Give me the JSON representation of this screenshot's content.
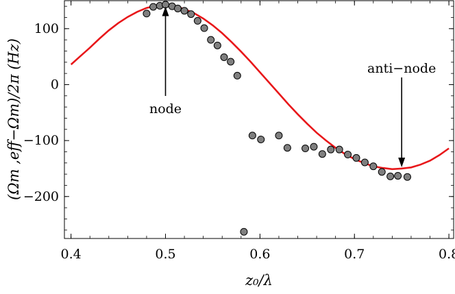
{
  "chart_data": {
    "type": "scatter",
    "xlabel": "z₀/λ",
    "ylabel": "(Ωm ,eff−Ωm)/2π (Hz)",
    "xlim": [
      0.393,
      0.805
    ],
    "ylim": [
      -275,
      150
    ],
    "x_ticks": [
      0.4,
      0.5,
      0.6,
      0.7,
      0.8
    ],
    "x_tick_labels": [
      "0.4",
      "0.5",
      "0.6",
      "0.7",
      "0.8"
    ],
    "y_ticks": [
      -200,
      -100,
      0,
      100
    ],
    "y_tick_labels": [
      "−200",
      "−100",
      "0",
      "100"
    ],
    "grid": false,
    "series": [
      {
        "kind": "points",
        "color": "#7f7f7f",
        "x": [
          0.48,
          0.487,
          0.494,
          0.5,
          0.507,
          0.513,
          0.52,
          0.527,
          0.534,
          0.541,
          0.548,
          0.555,
          0.562,
          0.569,
          0.576,
          0.583,
          0.592,
          0.601,
          0.62,
          0.629,
          0.648,
          0.657,
          0.666,
          0.675,
          0.684,
          0.693,
          0.702,
          0.711,
          0.72,
          0.729,
          0.738,
          0.746,
          0.756
        ],
        "y": [
          127,
          139,
          141,
          143,
          140,
          136,
          132,
          126,
          114,
          101,
          80,
          70,
          49,
          41,
          16,
          -263,
          -91,
          -98,
          -91,
          -113,
          -114,
          -111,
          -124,
          -116,
          -116,
          -125,
          -131,
          -139,
          -146,
          -156,
          -164,
          -163,
          -165
        ]
      },
      {
        "kind": "curve",
        "color": "#e8171a",
        "x": [
          0.4,
          0.41,
          0.42,
          0.43,
          0.44,
          0.45,
          0.46,
          0.47,
          0.48,
          0.49,
          0.5,
          0.51,
          0.52,
          0.53,
          0.54,
          0.55,
          0.56,
          0.57,
          0.58,
          0.59,
          0.6,
          0.61,
          0.62,
          0.63,
          0.64,
          0.65,
          0.66,
          0.67,
          0.68,
          0.69,
          0.7,
          0.71,
          0.72,
          0.73,
          0.74,
          0.75,
          0.76,
          0.77,
          0.78,
          0.79,
          0.8
        ],
        "y": [
          36,
          51,
          66,
          82,
          97,
          110,
          121,
          130,
          137,
          141,
          142,
          140,
          135,
          128,
          118,
          106,
          92,
          76,
          59,
          41,
          22,
          3,
          -16,
          -35,
          -53,
          -70,
          -86,
          -100,
          -113,
          -124,
          -133,
          -140,
          -146,
          -149,
          -151,
          -150,
          -148,
          -143,
          -136,
          -126,
          -114
        ]
      }
    ],
    "annotations": [
      {
        "text": "node",
        "x": 0.5,
        "y": 142
      },
      {
        "text": "anti−node",
        "x": 0.75,
        "y": -150
      }
    ]
  }
}
